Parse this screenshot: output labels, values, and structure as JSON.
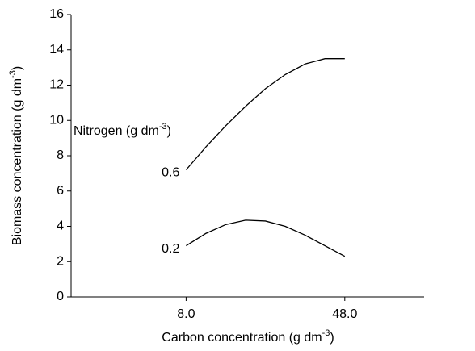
{
  "chart_data": {
    "type": "line",
    "y_label": {
      "text": "Biomass concentration (g dm",
      "sup": "-3",
      "end": ")"
    },
    "x_label": {
      "text": "Carbon concentration (g dm",
      "sup": "-3",
      "end": ")"
    },
    "annotation": {
      "text": "Nitrogen (g dm",
      "sup": "-3",
      "end": ")"
    },
    "x": [
      8,
      13,
      18,
      23,
      28,
      33,
      38,
      43,
      48
    ],
    "series": [
      {
        "name": "0.6",
        "color": "#000000",
        "values": [
          7.2,
          8.5,
          9.7,
          10.8,
          11.8,
          12.6,
          13.2,
          13.5,
          13.5
        ]
      },
      {
        "name": "0.2",
        "color": "#000000",
        "values": [
          2.9,
          3.6,
          4.1,
          4.35,
          4.3,
          4.0,
          3.5,
          2.9,
          2.3
        ]
      }
    ],
    "xlim": [
      -21,
      68
    ],
    "xticks": [
      {
        "value": 8,
        "label": "8.0"
      },
      {
        "value": 48,
        "label": "48.0"
      }
    ],
    "ylim": [
      0,
      16
    ],
    "yticks": [
      0,
      2,
      4,
      6,
      8,
      10,
      12,
      14,
      16
    ],
    "grid": false
  }
}
